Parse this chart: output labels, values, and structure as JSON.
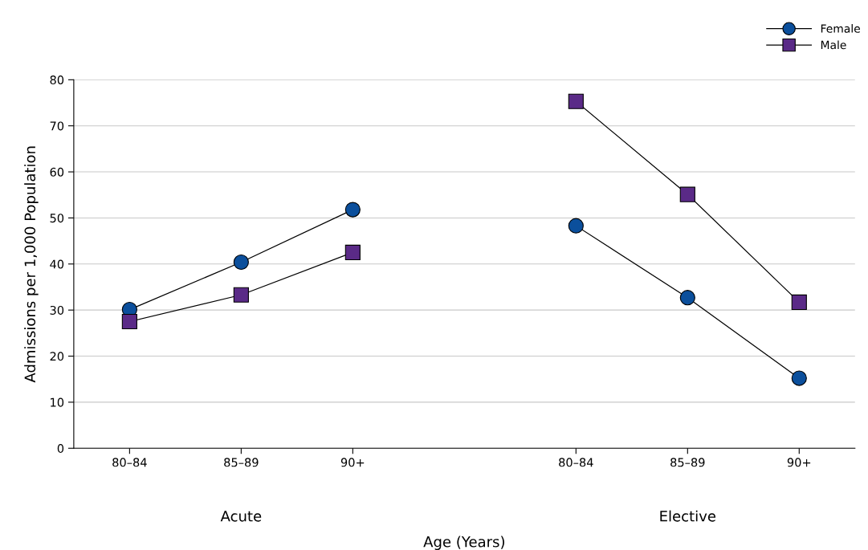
{
  "chart_data": {
    "type": "line",
    "xlabel": "Age (Years)",
    "ylabel": "Admissions per 1,000 Population",
    "categories": [
      "80–84",
      "85–89",
      "90+",
      null,
      "80–84",
      "85–89",
      "90+"
    ],
    "series": [
      {
        "name": "Female",
        "color": "#0b4f9c",
        "marker": "circle",
        "values": [
          30.1,
          40.4,
          51.8,
          null,
          48.3,
          32.7,
          15.2
        ]
      },
      {
        "name": "Male",
        "color": "#5a2a87",
        "marker": "square",
        "values": [
          27.5,
          33.3,
          42.5,
          null,
          75.3,
          55.1,
          31.7
        ]
      }
    ],
    "annotations": [
      "Acute",
      "Elective"
    ],
    "ylim": [
      0,
      80
    ],
    "yticks": [
      0,
      10,
      20,
      30,
      40,
      50,
      60,
      70,
      80
    ],
    "grid": "y",
    "legend": "top right",
    "line_style": "solid"
  }
}
